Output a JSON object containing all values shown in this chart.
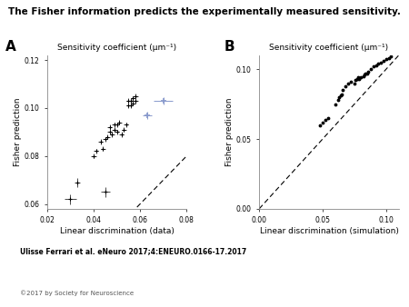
{
  "title": "The Fisher information predicts the experimentally measured sensitivity.",
  "title_fontsize": 7.5,
  "panel_A": {
    "label": "A",
    "xlabel": "Linear discrimination (data)",
    "ylabel": "Fisher prediction",
    "top_label": "Sensitivity coefficient (μm⁻¹)",
    "xlim": [
      0.02,
      0.08
    ],
    "ylim": [
      0.058,
      0.122
    ],
    "xticks": [
      0.02,
      0.04,
      0.06,
      0.08
    ],
    "yticks": [
      0.06,
      0.08,
      0.1,
      0.12
    ],
    "data_black": [
      [
        0.03,
        0.062
      ],
      [
        0.033,
        0.069
      ],
      [
        0.04,
        0.08
      ],
      [
        0.041,
        0.082
      ],
      [
        0.043,
        0.086
      ],
      [
        0.044,
        0.083
      ],
      [
        0.045,
        0.087
      ],
      [
        0.046,
        0.088
      ],
      [
        0.047,
        0.092
      ],
      [
        0.047,
        0.09
      ],
      [
        0.048,
        0.089
      ],
      [
        0.049,
        0.091
      ],
      [
        0.049,
        0.093
      ],
      [
        0.05,
        0.09
      ],
      [
        0.05,
        0.093
      ],
      [
        0.051,
        0.094
      ],
      [
        0.052,
        0.089
      ],
      [
        0.053,
        0.091
      ],
      [
        0.054,
        0.093
      ],
      [
        0.055,
        0.101
      ],
      [
        0.055,
        0.103
      ],
      [
        0.056,
        0.101
      ],
      [
        0.056,
        0.103
      ],
      [
        0.057,
        0.102
      ],
      [
        0.057,
        0.104
      ],
      [
        0.058,
        0.103
      ],
      [
        0.058,
        0.105
      ],
      [
        0.045,
        0.065
      ]
    ],
    "data_blue": [
      [
        0.07,
        0.103
      ],
      [
        0.063,
        0.097
      ]
    ],
    "xerr_black": [
      0.0025,
      0.001,
      0.001,
      0.001,
      0.001,
      0.001,
      0.001,
      0.001,
      0.001,
      0.001,
      0.001,
      0.001,
      0.001,
      0.001,
      0.001,
      0.001,
      0.001,
      0.001,
      0.001,
      0.001,
      0.001,
      0.001,
      0.001,
      0.001,
      0.001,
      0.001,
      0.001,
      0.002
    ],
    "yerr_black": [
      0.002,
      0.002,
      0.001,
      0.001,
      0.001,
      0.001,
      0.001,
      0.001,
      0.001,
      0.001,
      0.001,
      0.001,
      0.001,
      0.001,
      0.001,
      0.001,
      0.001,
      0.001,
      0.001,
      0.001,
      0.001,
      0.001,
      0.001,
      0.001,
      0.001,
      0.001,
      0.001,
      0.002
    ],
    "xerr_blue": [
      0.004,
      0.002
    ],
    "yerr_blue": [
      0.0015,
      0.0015
    ]
  },
  "panel_B": {
    "label": "B",
    "xlabel": "Linear discrimination (simulation)",
    "ylabel": "Fisher prediction",
    "top_label": "Sensitivity coefficient (μm⁻¹)",
    "xlim": [
      0,
      0.11
    ],
    "ylim": [
      0,
      0.11
    ],
    "xticks": [
      0,
      0.05,
      0.1
    ],
    "yticks": [
      0,
      0.05,
      0.1
    ],
    "data": [
      [
        0.048,
        0.06
      ],
      [
        0.05,
        0.062
      ],
      [
        0.052,
        0.064
      ],
      [
        0.054,
        0.065
      ],
      [
        0.06,
        0.075
      ],
      [
        0.062,
        0.078
      ],
      [
        0.063,
        0.08
      ],
      [
        0.064,
        0.081
      ],
      [
        0.065,
        0.082
      ],
      [
        0.066,
        0.085
      ],
      [
        0.068,
        0.088
      ],
      [
        0.07,
        0.09
      ],
      [
        0.072,
        0.091
      ],
      [
        0.075,
        0.09
      ],
      [
        0.076,
        0.092
      ],
      [
        0.077,
        0.093
      ],
      [
        0.078,
        0.094
      ],
      [
        0.079,
        0.093
      ],
      [
        0.08,
        0.094
      ],
      [
        0.082,
        0.095
      ],
      [
        0.083,
        0.096
      ],
      [
        0.084,
        0.097
      ],
      [
        0.085,
        0.097
      ],
      [
        0.086,
        0.098
      ],
      [
        0.088,
        0.1
      ],
      [
        0.09,
        0.102
      ],
      [
        0.092,
        0.103
      ],
      [
        0.094,
        0.104
      ],
      [
        0.096,
        0.105
      ],
      [
        0.098,
        0.106
      ],
      [
        0.1,
        0.107
      ],
      [
        0.102,
        0.108
      ],
      [
        0.104,
        0.109
      ]
    ]
  },
  "citation": "Ulisse Ferrari et al. eNeuro 2017;4:ENEURO.0166-17.2017",
  "copyright": "©2017 by Society for Neuroscience"
}
